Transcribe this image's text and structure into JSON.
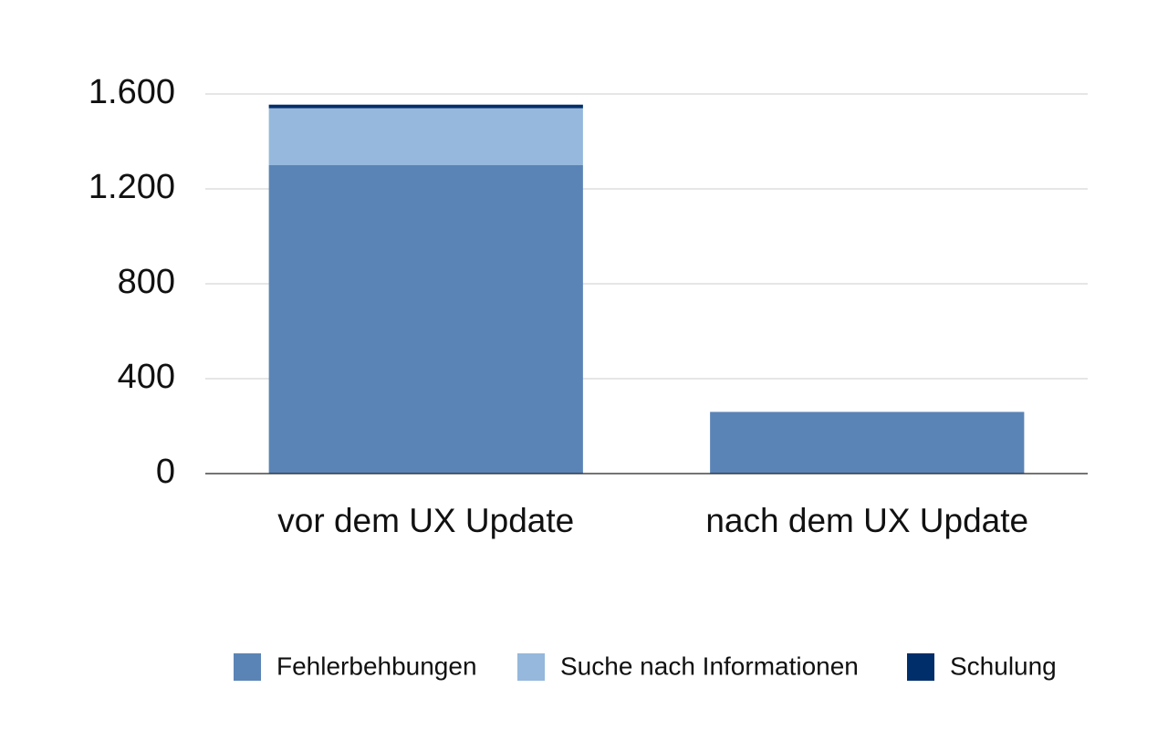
{
  "chart_data": {
    "type": "stacked_bar",
    "categories": [
      "vor dem UX Update",
      "nach dem UX Update"
    ],
    "series": [
      {
        "name": "Fehlerbehbungen",
        "color": "#5b84b6",
        "values": [
          1300,
          260
        ]
      },
      {
        "name": "Suche nach Informationen",
        "color": "#95b8dc",
        "values": [
          240,
          0
        ]
      },
      {
        "name": "Schulung",
        "color": "#002e6b",
        "values": [
          15,
          0
        ]
      }
    ],
    "ylim": [
      0,
      1600
    ],
    "yticks": [
      0,
      400,
      800,
      {
        "value": 1200,
        "label": "1.200"
      },
      {
        "value": 1600,
        "label": "1.600"
      }
    ],
    "grid": true,
    "legend": "bottom"
  }
}
